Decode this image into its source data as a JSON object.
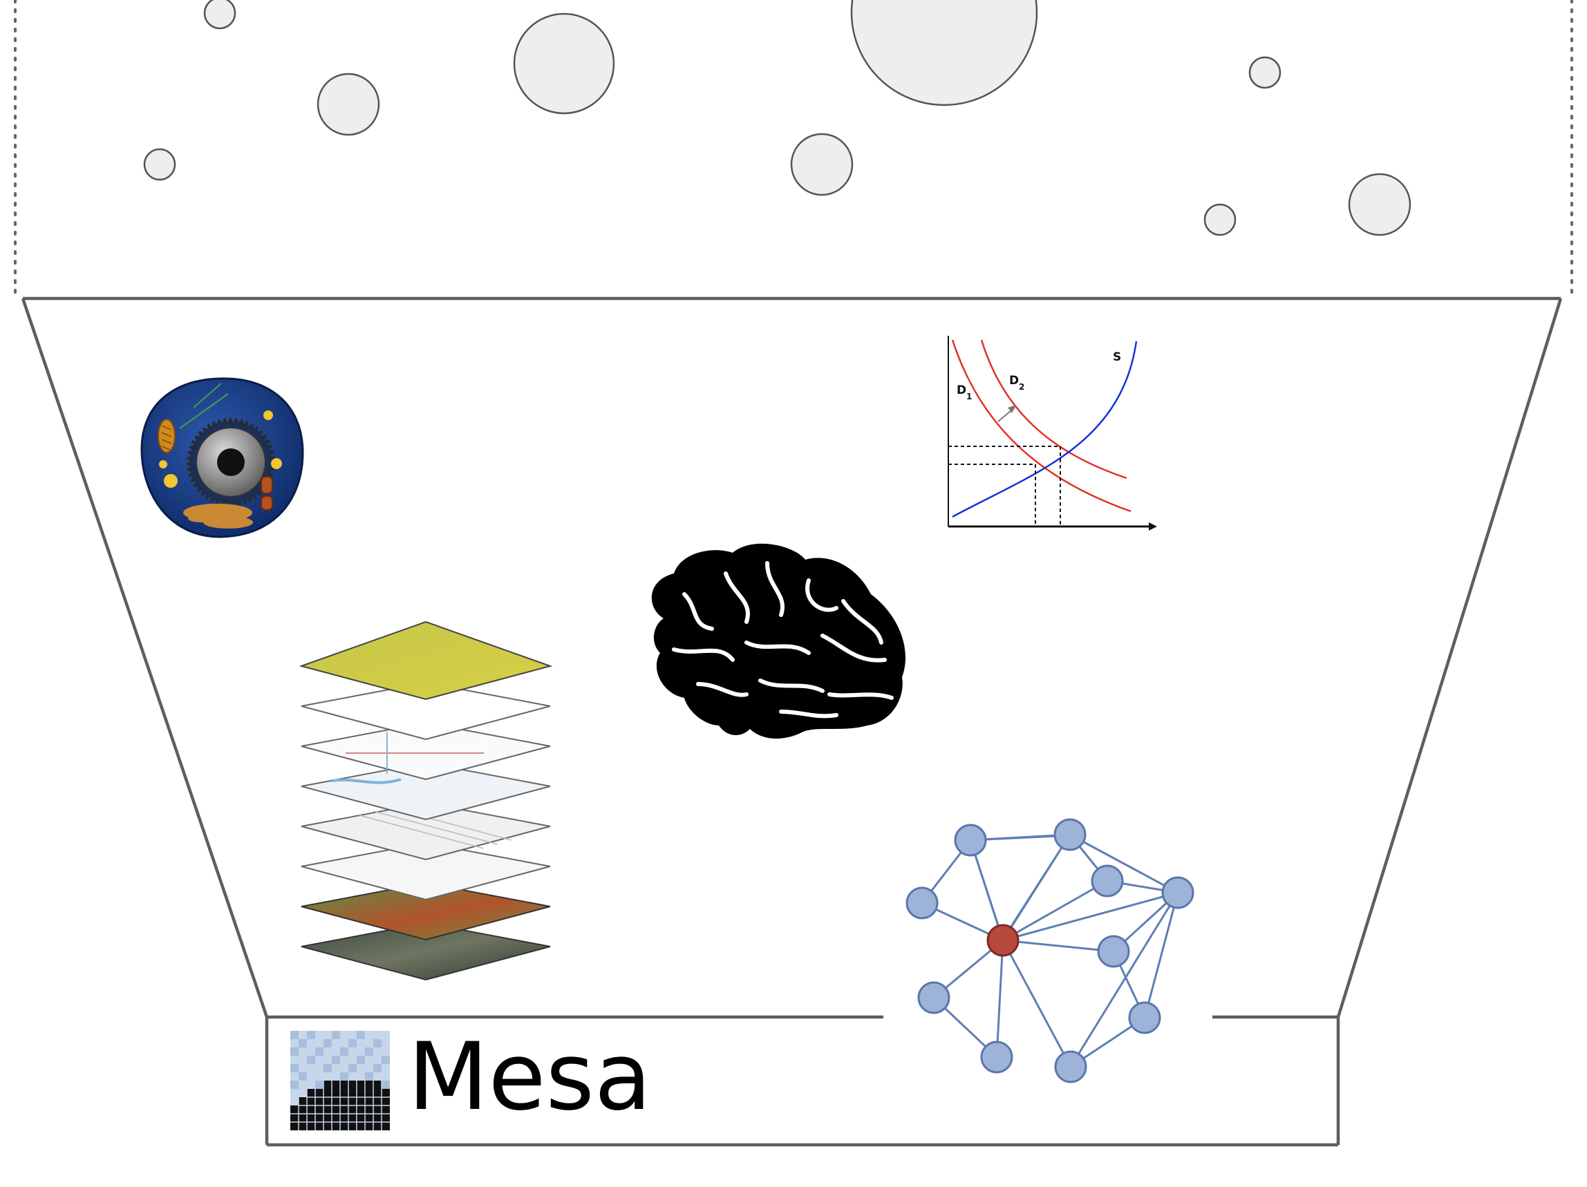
{
  "brand": {
    "name": "Mesa"
  },
  "supply_demand_chart": {
    "labels": {
      "supply": "S",
      "demand1_main": "D",
      "demand1_sub": "1",
      "demand2_main": "D",
      "demand2_sub": "2"
    }
  },
  "colors": {
    "supply_curve": "#1433d6",
    "demand_curve": "#e0322a",
    "network_node": "#9db3d8",
    "network_center_node": "#b8493f",
    "bubble_fill": "#eeeeee"
  },
  "icons": [
    "cell-icon",
    "supply-demand-chart-icon",
    "brain-icon",
    "gis-layers-icon",
    "network-graph-icon",
    "mesa-logo-icon"
  ]
}
